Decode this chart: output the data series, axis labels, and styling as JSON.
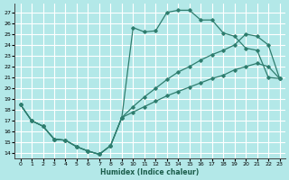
{
  "xlabel": "Humidex (Indice chaleur)",
  "bg_color": "#b3e8e8",
  "grid_color": "#ffffff",
  "line_color": "#2e7d6e",
  "xlim": [
    -0.5,
    23.5
  ],
  "ylim": [
    13.5,
    27.8
  ],
  "xticks": [
    0,
    1,
    2,
    3,
    4,
    5,
    6,
    7,
    8,
    9,
    10,
    11,
    12,
    13,
    14,
    15,
    16,
    17,
    18,
    19,
    20,
    21,
    22,
    23
  ],
  "yticks": [
    14,
    15,
    16,
    17,
    18,
    19,
    20,
    21,
    22,
    23,
    24,
    25,
    26,
    27
  ],
  "curve1_x": [
    0,
    1,
    2,
    3,
    4,
    5,
    6,
    7,
    8,
    9,
    10,
    11,
    12,
    13,
    14,
    15,
    16,
    17,
    18,
    19,
    20,
    21,
    22,
    23
  ],
  "curve1_y": [
    18.5,
    17.0,
    16.5,
    15.3,
    15.2,
    14.6,
    14.2,
    13.9,
    14.7,
    17.3,
    25.6,
    25.2,
    25.3,
    27.0,
    27.2,
    27.2,
    26.3,
    26.3,
    25.1,
    24.8,
    23.7,
    23.5,
    21.0,
    20.9
  ],
  "curve2_x": [
    0,
    1,
    2,
    3,
    4,
    5,
    6,
    7,
    8,
    9,
    10,
    11,
    12,
    13,
    14,
    15,
    16,
    17,
    18,
    19,
    20,
    21,
    22,
    23
  ],
  "curve2_y": [
    18.5,
    17.0,
    16.5,
    15.3,
    15.2,
    14.6,
    14.2,
    13.9,
    14.7,
    17.3,
    18.3,
    19.2,
    20.0,
    20.8,
    21.5,
    22.0,
    22.6,
    23.1,
    23.5,
    24.0,
    25.0,
    24.8,
    24.0,
    20.9
  ],
  "curve3_x": [
    0,
    1,
    2,
    3,
    4,
    5,
    6,
    7,
    8,
    9,
    10,
    11,
    12,
    13,
    14,
    15,
    16,
    17,
    18,
    19,
    20,
    21,
    22,
    23
  ],
  "curve3_y": [
    18.5,
    17.0,
    16.5,
    15.3,
    15.2,
    14.6,
    14.2,
    13.9,
    14.7,
    17.3,
    17.8,
    18.3,
    18.8,
    19.3,
    19.7,
    20.1,
    20.5,
    20.9,
    21.2,
    21.7,
    22.0,
    22.3,
    22.0,
    20.9
  ]
}
